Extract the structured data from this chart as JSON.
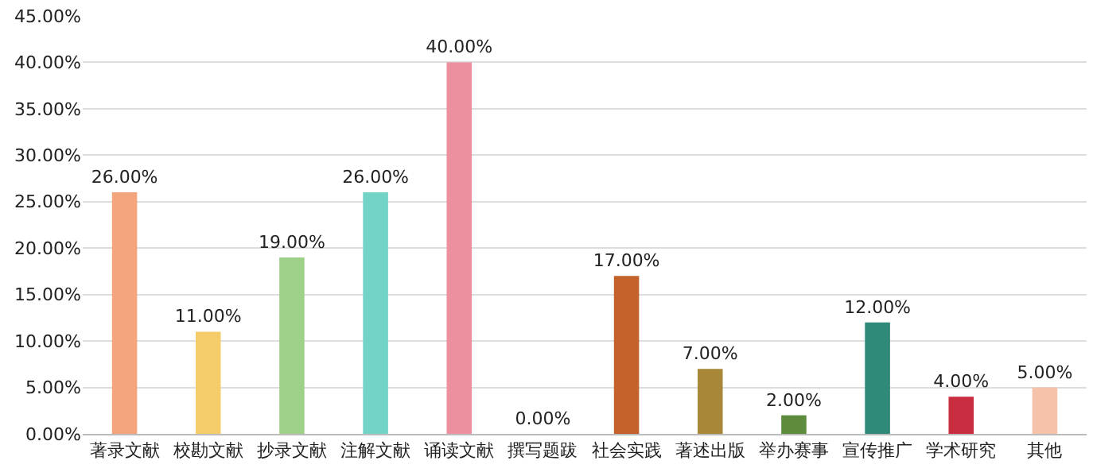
{
  "chart_data": {
    "type": "bar",
    "categories": [
      "著录文献",
      "校勘文献",
      "抄录文献",
      "注解文献",
      "诵读文献",
      "撰写题跋",
      "社会实践",
      "著述出版",
      "举办赛事",
      "宣传推广",
      "学术研究",
      "其他"
    ],
    "values": [
      26,
      11,
      19,
      26,
      40,
      0,
      17,
      7,
      2,
      12,
      4,
      5
    ],
    "colors": [
      "#f4a57e",
      "#f5cc6a",
      "#9fd088",
      "#72d3c6",
      "#ee8fa0",
      null,
      "#c4622c",
      "#a88838",
      "#5e8c3e",
      "#2f8a7a",
      "#c92e40",
      "#f6c2aa"
    ],
    "value_labels": [
      "26.00%",
      "11.00%",
      "19.00%",
      "26.00%",
      "40.00%",
      "0.00%",
      "17.00%",
      "7.00%",
      "2.00%",
      "12.00%",
      "4.00%",
      "5.00%"
    ],
    "ylim": [
      0,
      45
    ],
    "yticks": [
      {
        "value": 0,
        "label": "0.00%"
      },
      {
        "value": 5,
        "label": "5.00%"
      },
      {
        "value": 10,
        "label": "10.00%"
      },
      {
        "value": 15,
        "label": "15.00%"
      },
      {
        "value": 20,
        "label": "20.00%"
      },
      {
        "value": 25,
        "label": "25.00%"
      },
      {
        "value": 30,
        "label": "30.00%"
      },
      {
        "value": 35,
        "label": "35.00%"
      },
      {
        "value": 40,
        "label": "40.00%"
      },
      {
        "value": 45,
        "label": "45.00%"
      }
    ],
    "grid": "y",
    "legend": false
  }
}
